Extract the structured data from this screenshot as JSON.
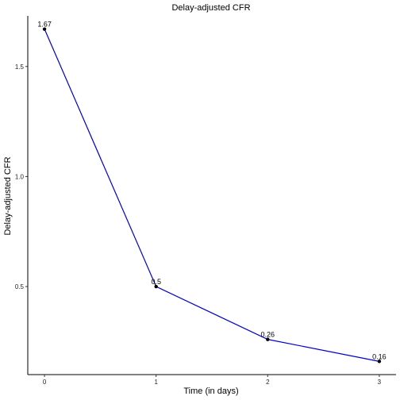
{
  "chart_data": {
    "type": "line",
    "title": "Delay-adjusted CFR",
    "xlabel": "Time (in days)",
    "ylabel": "Delay-adjusted CFR",
    "x": [
      0,
      1,
      2,
      3
    ],
    "series": [
      {
        "values": [
          1.67,
          0.5,
          0.26,
          0.16
        ],
        "labels": [
          "1.67",
          "0.5",
          "0.26",
          "0.16"
        ]
      }
    ],
    "xlim": [
      -0.15,
      3.15
    ],
    "ylim": [
      0.1,
      1.73
    ],
    "xticks": [
      0,
      1,
      2,
      3
    ],
    "xtick_labels": [
      "0",
      "1",
      "2",
      "3"
    ],
    "yticks": [
      0.5,
      1.0,
      1.5
    ],
    "ytick_labels": [
      "0.5",
      "1.0",
      "1.5"
    ],
    "grid": false,
    "line_color": "#0000cc",
    "point_color": "#000000"
  }
}
